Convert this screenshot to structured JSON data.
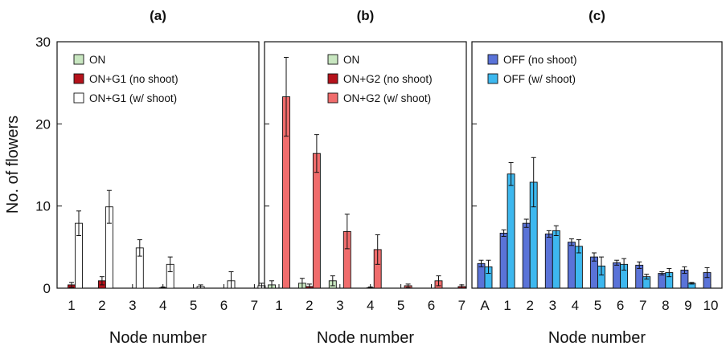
{
  "ylabel": "No. of flowers",
  "chart_data": [
    {
      "type": "bar",
      "title": "(a)",
      "xlabel": "Node number",
      "ylabel": "No. of flowers",
      "ylim": [
        0,
        30
      ],
      "yticks": [
        0,
        10,
        20,
        30
      ],
      "categories": [
        "1",
        "2",
        "3",
        "4",
        "5",
        "6",
        "7"
      ],
      "legend_position": "top-left",
      "series": [
        {
          "name": "ON",
          "color": "#c8e6c0",
          "values": [
            0,
            0,
            0,
            0,
            0,
            0,
            0
          ],
          "errors": [
            0,
            0,
            0,
            0,
            0,
            0,
            0
          ]
        },
        {
          "name": "ON+G1 (no shoot)",
          "color": "#b5121b",
          "values": [
            0.4,
            0.9,
            0,
            0.05,
            0,
            0,
            0
          ],
          "errors": [
            0.3,
            0.5,
            0,
            0.1,
            0,
            0,
            0
          ]
        },
        {
          "name": "ON+G1 (w/ shoot)",
          "color": "#ffffff",
          "values": [
            7.9,
            9.9,
            4.9,
            2.9,
            0.2,
            0.9,
            0.3
          ],
          "errors": [
            1.5,
            2.0,
            1.0,
            0.9,
            0.2,
            1.1,
            0.3
          ]
        }
      ]
    },
    {
      "type": "bar",
      "title": "(b)",
      "xlabel": "Node number",
      "ylabel": "",
      "ylim": [
        0,
        30
      ],
      "yticks": [
        0,
        10,
        20,
        30
      ],
      "categories": [
        "1",
        "2",
        "3",
        "4",
        "5",
        "6",
        "7"
      ],
      "legend_position": "top-right",
      "series": [
        {
          "name": "ON",
          "color": "#c8e6c0",
          "values": [
            0.4,
            0.6,
            0.9,
            0,
            0,
            0,
            0
          ],
          "errors": [
            0.5,
            0.6,
            0.6,
            0,
            0,
            0,
            0
          ]
        },
        {
          "name": "ON+G2 (no shoot)",
          "color": "#b5121b",
          "values": [
            0,
            0.2,
            0,
            0.05,
            0,
            0,
            0.2
          ],
          "errors": [
            0,
            0.3,
            0,
            0.1,
            0,
            0,
            0.2
          ]
        },
        {
          "name": "ON+G2 (w/ shoot)",
          "color": "#f06c6c",
          "values": [
            23.3,
            16.4,
            6.9,
            4.7,
            0.3,
            0.9,
            0
          ],
          "errors": [
            4.8,
            2.3,
            2.1,
            1.8,
            0.2,
            0.6,
            0
          ]
        }
      ]
    },
    {
      "type": "bar",
      "title": "(c)",
      "xlabel": "Node number",
      "ylabel": "",
      "ylim": [
        0,
        30
      ],
      "yticks": [
        0,
        10,
        20,
        30
      ],
      "categories": [
        "A",
        "1",
        "2",
        "3",
        "4",
        "5",
        "6",
        "7",
        "8",
        "9",
        "10"
      ],
      "legend_position": "top-left",
      "series": [
        {
          "name": "OFF (no shoot)",
          "color": "#5a73d8",
          "values": [
            3.0,
            6.7,
            7.9,
            6.6,
            5.6,
            3.8,
            3.1,
            2.8,
            1.8,
            2.2,
            1.9
          ],
          "errors": [
            0.4,
            0.4,
            0.5,
            0.4,
            0.4,
            0.5,
            0.3,
            0.4,
            0.2,
            0.4,
            0.6
          ]
        },
        {
          "name": "OFF (w/ shoot)",
          "color": "#3db8ef",
          "values": [
            2.6,
            13.9,
            12.9,
            7.0,
            5.1,
            2.7,
            2.9,
            1.4,
            1.9,
            0.6,
            0
          ],
          "errors": [
            0.8,
            1.4,
            3.0,
            0.6,
            0.8,
            1.1,
            0.7,
            0.3,
            0.5,
            0.1,
            0
          ]
        }
      ]
    }
  ]
}
